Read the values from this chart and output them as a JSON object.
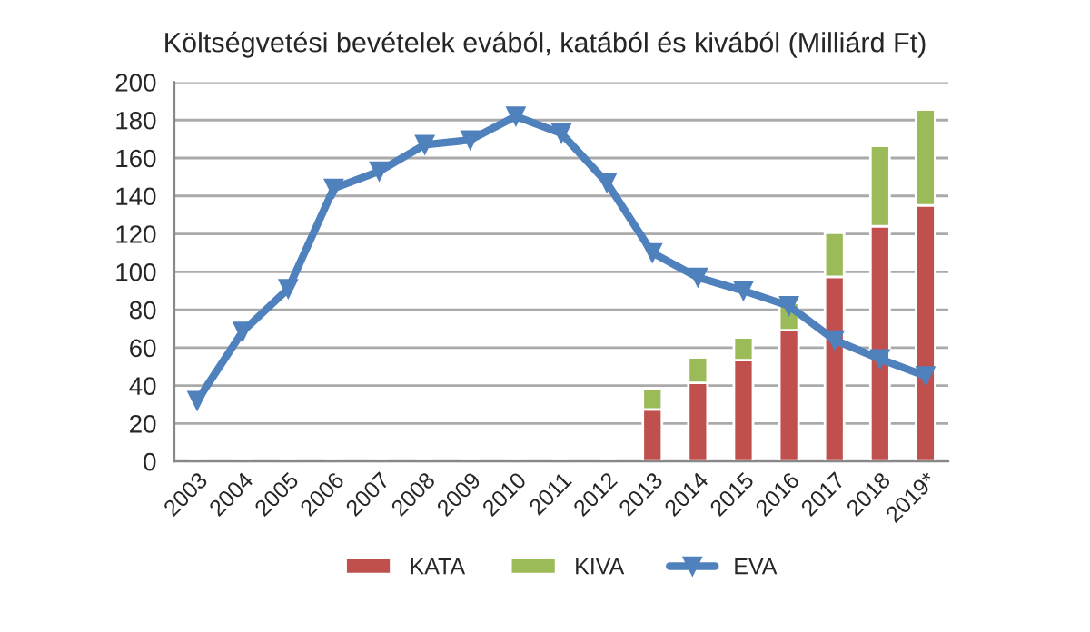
{
  "chart_data": {
    "type": "bar",
    "title": "Költségvetési bevételek evából, katából és kivából (Milliárd Ft)",
    "categories": [
      "2003",
      "2004",
      "2005",
      "2006",
      "2007",
      "2008",
      "2009",
      "2010",
      "2011",
      "2012",
      "2013",
      "2014",
      "2015",
      "2016",
      "2017",
      "2018",
      "2019*"
    ],
    "stacked": true,
    "series": [
      {
        "name": "KATA",
        "color": "#c0504d",
        "values": [
          null,
          null,
          null,
          null,
          null,
          null,
          null,
          null,
          null,
          null,
          27.4,
          41.4,
          53.4,
          69.2,
          97.3,
          124,
          135
        ]
      },
      {
        "name": "KIVA",
        "color": "#9bbb59",
        "values": [
          null,
          null,
          null,
          null,
          null,
          null,
          null,
          null,
          null,
          null,
          10.6,
          13.4,
          12,
          14.4,
          23.2,
          42.4,
          50.6
        ]
      },
      {
        "name": "EVA",
        "type": "line",
        "color": "#4f81bd",
        "marker": "triangle",
        "values": [
          32,
          68.5,
          91,
          144,
          153,
          167,
          169.5,
          182,
          173,
          147,
          110,
          97,
          90,
          82,
          64,
          54,
          45
        ]
      }
    ],
    "ylim": [
      0,
      200
    ],
    "yticks": [
      0,
      20,
      40,
      60,
      80,
      100,
      120,
      140,
      160,
      180,
      200
    ],
    "grid": "y",
    "legend": "bottom"
  }
}
